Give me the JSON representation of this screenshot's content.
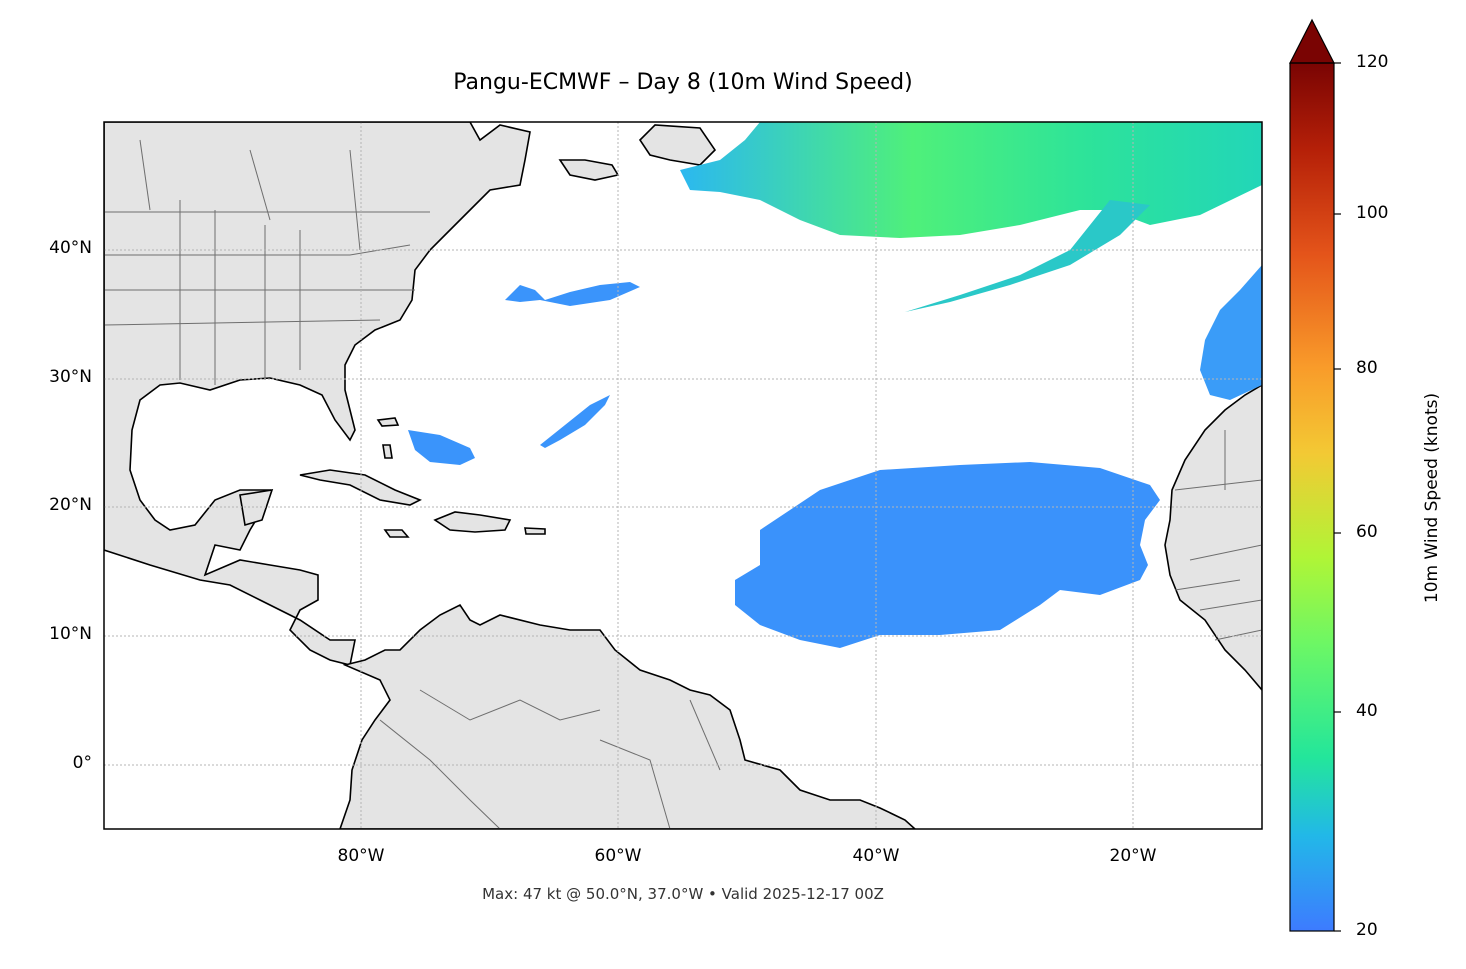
{
  "title": "Pangu-ECMWF – Day 8 (10m Wind Speed)",
  "footer": "Max: 47 kt @ 50.0°N, 37.0°W • Valid 2025-12-17 00Z",
  "map": {
    "extent": {
      "lon_min": -100,
      "lon_max": -10,
      "lat_min": -5,
      "lat_max": 50
    },
    "y_ticks": [
      {
        "label": "40°N"
      },
      {
        "label": "30°N"
      },
      {
        "label": "20°N"
      },
      {
        "label": "10°N"
      },
      {
        "label": "0°"
      }
    ],
    "x_ticks": [
      {
        "label": "80°W"
      },
      {
        "label": "60°W"
      },
      {
        "label": "40°W"
      },
      {
        "label": "20°W"
      }
    ],
    "gridlines": true,
    "land_color": "#e4e4e4",
    "coast_color": "#000000",
    "border_color": "#6e6e6e"
  },
  "colorbar": {
    "label": "10m Wind Speed (knots)",
    "min": 20,
    "max": 120,
    "extend": "max",
    "ticks": [
      {
        "label": "20"
      },
      {
        "label": "40"
      },
      {
        "label": "60"
      },
      {
        "label": "80"
      },
      {
        "label": "100"
      },
      {
        "label": "120"
      }
    ],
    "colormap": [
      "#3d7bff",
      "#22b8e8",
      "#23e69b",
      "#6cf765",
      "#b0f536",
      "#f3c934",
      "#f99b2a",
      "#e4541a",
      "#b52008",
      "#7a0403"
    ]
  },
  "wind_regions": [
    {
      "name": "northern-jet",
      "color": "#22d9a8"
    },
    {
      "name": "central-atlantic-high-wind",
      "color": "#3aa0ff"
    }
  ]
}
